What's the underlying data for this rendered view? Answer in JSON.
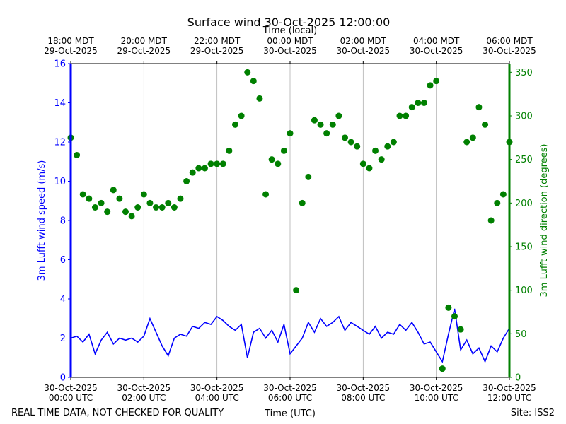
{
  "chart_data": {
    "type": "line",
    "title": "Surface wind 30-Oct-2025 12:00:00",
    "x_label": "Time (UTC)",
    "x2_label": "Time (local)",
    "y_label": "3m Lufft wind speed (m/s)",
    "y2_label": "3m Lufft wind direction (degrees)",
    "footnote": "REAL TIME DATA, NOT CHECKED FOR QUALITY",
    "site": "Site: ISS2",
    "grid": "x",
    "xlim": [
      "2025-10-30 00:00",
      "2025-10-30 12:00"
    ],
    "xticks": [
      {
        "value": "2025-10-30 00:00",
        "label": "30-Oct-2025\n00:00 UTC"
      },
      {
        "value": "2025-10-30 02:00",
        "label": "30-Oct-2025\n02:00 UTC"
      },
      {
        "value": "2025-10-30 04:00",
        "label": "30-Oct-2025\n04:00 UTC"
      },
      {
        "value": "2025-10-30 06:00",
        "label": "30-Oct-2025\n06:00 UTC"
      },
      {
        "value": "2025-10-30 08:00",
        "label": "30-Oct-2025\n08:00 UTC"
      },
      {
        "value": "2025-10-30 10:00",
        "label": "30-Oct-2025\n10:00 UTC"
      },
      {
        "value": "2025-10-30 12:00",
        "label": "30-Oct-2025\n12:00 UTC"
      }
    ],
    "x2ticks": [
      {
        "value": "2025-10-30 00:00",
        "label": "18:00 MDT\n29-Oct-2025"
      },
      {
        "value": "2025-10-30 02:00",
        "label": "20:00 MDT\n29-Oct-2025"
      },
      {
        "value": "2025-10-30 04:00",
        "label": "22:00 MDT\n29-Oct-2025"
      },
      {
        "value": "2025-10-30 06:00",
        "label": "00:00 MDT\n30-Oct-2025"
      },
      {
        "value": "2025-10-30 08:00",
        "label": "02:00 MDT\n30-Oct-2025"
      },
      {
        "value": "2025-10-30 10:00",
        "label": "04:00 MDT\n30-Oct-2025"
      },
      {
        "value": "2025-10-30 12:00",
        "label": "06:00 MDT\n30-Oct-2025"
      }
    ],
    "ylim": [
      0,
      16
    ],
    "yticks": [
      0,
      2,
      4,
      6,
      8,
      10,
      12,
      14,
      16
    ],
    "y2lim": [
      0,
      360
    ],
    "y2ticks": [
      0,
      50,
      100,
      150,
      200,
      250,
      300,
      350
    ],
    "x": [
      "2025-10-30 00:00",
      "2025-10-30 00:10",
      "2025-10-30 00:20",
      "2025-10-30 00:30",
      "2025-10-30 00:40",
      "2025-10-30 00:50",
      "2025-10-30 01:00",
      "2025-10-30 01:10",
      "2025-10-30 01:20",
      "2025-10-30 01:30",
      "2025-10-30 01:40",
      "2025-10-30 01:50",
      "2025-10-30 02:00",
      "2025-10-30 02:10",
      "2025-10-30 02:20",
      "2025-10-30 02:30",
      "2025-10-30 02:40",
      "2025-10-30 02:50",
      "2025-10-30 03:00",
      "2025-10-30 03:10",
      "2025-10-30 03:20",
      "2025-10-30 03:30",
      "2025-10-30 03:40",
      "2025-10-30 03:50",
      "2025-10-30 04:00",
      "2025-10-30 04:10",
      "2025-10-30 04:20",
      "2025-10-30 04:30",
      "2025-10-30 04:40",
      "2025-10-30 04:50",
      "2025-10-30 05:00",
      "2025-10-30 05:10",
      "2025-10-30 05:20",
      "2025-10-30 05:30",
      "2025-10-30 05:40",
      "2025-10-30 05:50",
      "2025-10-30 06:00",
      "2025-10-30 06:10",
      "2025-10-30 06:20",
      "2025-10-30 06:30",
      "2025-10-30 06:40",
      "2025-10-30 06:50",
      "2025-10-30 07:00",
      "2025-10-30 07:10",
      "2025-10-30 07:20",
      "2025-10-30 07:30",
      "2025-10-30 07:40",
      "2025-10-30 07:50",
      "2025-10-30 08:00",
      "2025-10-30 08:10",
      "2025-10-30 08:20",
      "2025-10-30 08:30",
      "2025-10-30 08:40",
      "2025-10-30 08:50",
      "2025-10-30 09:00",
      "2025-10-30 09:10",
      "2025-10-30 09:20",
      "2025-10-30 09:30",
      "2025-10-30 09:40",
      "2025-10-30 09:50",
      "2025-10-30 10:00",
      "2025-10-30 10:10",
      "2025-10-30 10:20",
      "2025-10-30 10:30",
      "2025-10-30 10:40",
      "2025-10-30 10:50",
      "2025-10-30 11:00",
      "2025-10-30 11:10",
      "2025-10-30 11:20",
      "2025-10-30 11:30",
      "2025-10-30 11:40",
      "2025-10-30 11:50",
      "2025-10-30 12:00"
    ],
    "series": [
      {
        "type": "line",
        "axis": "y",
        "color": "#0000ff",
        "values": [
          2,
          2.1,
          1.8,
          2.2,
          1.2,
          1.9,
          2.3,
          1.7,
          2.0,
          1.9,
          2.0,
          1.8,
          2.1,
          3.0,
          2.3,
          1.6,
          1.1,
          2.0,
          2.2,
          2.1,
          2.6,
          2.5,
          2.8,
          2.7,
          3.1,
          2.9,
          2.6,
          2.4,
          2.7,
          1.0,
          2.3,
          2.5,
          2.0,
          2.4,
          1.8,
          2.7,
          1.2,
          1.6,
          2.0,
          2.8,
          2.3,
          3.0,
          2.6,
          2.8,
          3.1,
          2.4,
          2.8,
          2.6,
          2.4,
          2.2,
          2.6,
          2.0,
          2.3,
          2.2,
          2.7,
          2.4,
          2.8,
          2.3,
          1.7,
          1.8,
          1.3,
          0.8,
          2.2,
          3.5,
          1.4,
          1.9,
          1.2,
          1.5,
          0.8,
          1.6,
          1.3,
          2.0,
          2.5
        ]
      },
      {
        "type": "scatter",
        "axis": "y2",
        "color": "#008000",
        "values": [
          275,
          255,
          210,
          205,
          195,
          200,
          190,
          215,
          205,
          190,
          185,
          195,
          210,
          200,
          195,
          195,
          200,
          195,
          205,
          225,
          235,
          240,
          240,
          245,
          245,
          245,
          260,
          290,
          300,
          350,
          340,
          320,
          210,
          250,
          245,
          260,
          280,
          100,
          200,
          230,
          295,
          290,
          280,
          290,
          300,
          275,
          270,
          265,
          245,
          240,
          260,
          250,
          265,
          270,
          300,
          300,
          310,
          315,
          315,
          335,
          340,
          10,
          80,
          70,
          55,
          270,
          275,
          310,
          290,
          180,
          200,
          210,
          270
        ]
      }
    ]
  }
}
